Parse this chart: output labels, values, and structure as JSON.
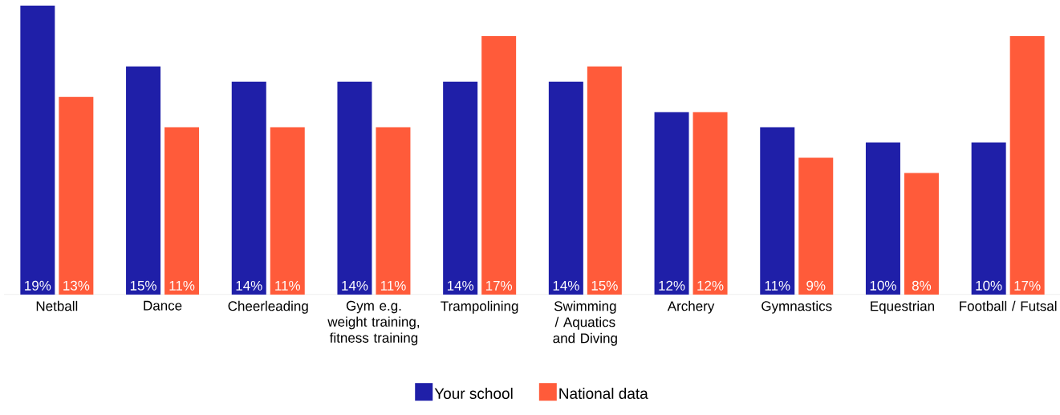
{
  "chart_data": {
    "type": "bar",
    "categories": [
      "Netball",
      "Dance",
      "Cheerleading",
      "Gym e.g. weight training, fitness training",
      "Trampolining",
      "Swimming / Aquatics and Diving",
      "Archery",
      "Gymnastics",
      "Equestrian",
      "Football / Futsal"
    ],
    "series": [
      {
        "name": "Your school",
        "color": "#1f1fa8",
        "values": [
          19,
          15,
          14,
          14,
          14,
          14,
          12,
          11,
          10,
          10
        ],
        "value_labels": [
          "19%",
          "15%",
          "14%",
          "14%",
          "14%",
          "14%",
          "12%",
          "11%",
          "10%",
          "10%"
        ]
      },
      {
        "name": "National data",
        "color": "#ff5b3a",
        "values": [
          13,
          11,
          11,
          11,
          17,
          15,
          12,
          9,
          8,
          17
        ],
        "value_labels": [
          "13%",
          "11%",
          "11%",
          "11%",
          "17%",
          "15%",
          "12%",
          "9%",
          "8%",
          "17%"
        ]
      }
    ],
    "legend": "bottom"
  }
}
